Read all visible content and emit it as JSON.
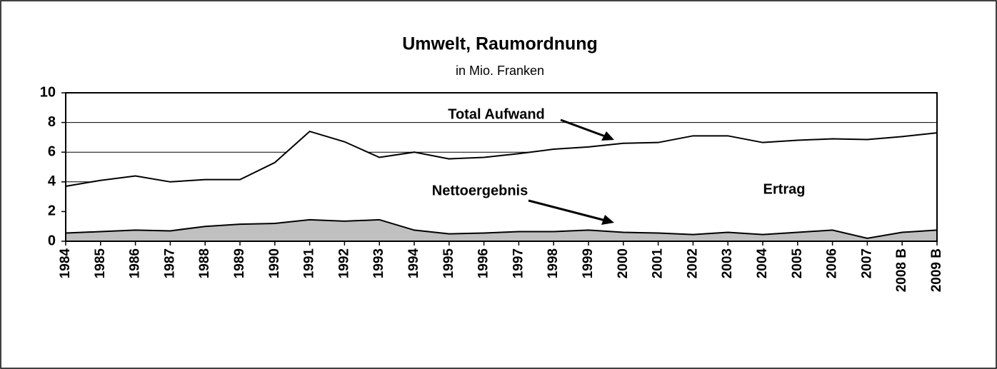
{
  "chart_data": {
    "type": "area",
    "title": "Umwelt, Raumordnung",
    "subtitle": "in Mio. Franken",
    "categories": [
      "1984",
      "1985",
      "1986",
      "1987",
      "1988",
      "1989",
      "1990",
      "1991",
      "1992",
      "1993",
      "1994",
      "1995",
      "1996",
      "1997",
      "1998",
      "1999",
      "2000",
      "2001",
      "2002",
      "2003",
      "2004",
      "2005",
      "2006",
      "2007",
      "2008 B",
      "2009 B"
    ],
    "series": [
      {
        "name": "Total Aufwand",
        "color": "#ffffff",
        "values": [
          3.7,
          4.1,
          4.4,
          4.0,
          4.15,
          4.15,
          5.3,
          7.4,
          6.7,
          5.65,
          6.0,
          5.55,
          5.65,
          5.9,
          6.2,
          6.35,
          6.6,
          6.65,
          7.1,
          7.1,
          6.65,
          6.8,
          6.9,
          6.85,
          7.05,
          7.3
        ]
      },
      {
        "name": "Nettoergebnis",
        "color": "#c0c0c0",
        "values": [
          0.55,
          0.65,
          0.75,
          0.7,
          1.0,
          1.15,
          1.2,
          1.45,
          1.35,
          1.45,
          0.75,
          0.5,
          0.55,
          0.65,
          0.65,
          0.75,
          0.6,
          0.55,
          0.45,
          0.6,
          0.45,
          0.6,
          0.75,
          0.2,
          0.6,
          0.75
        ]
      }
    ],
    "annotations": [
      "Ertrag"
    ],
    "ylim": [
      0,
      10
    ],
    "yticks": [
      0,
      2,
      4,
      6,
      8,
      10
    ],
    "grid": true
  }
}
